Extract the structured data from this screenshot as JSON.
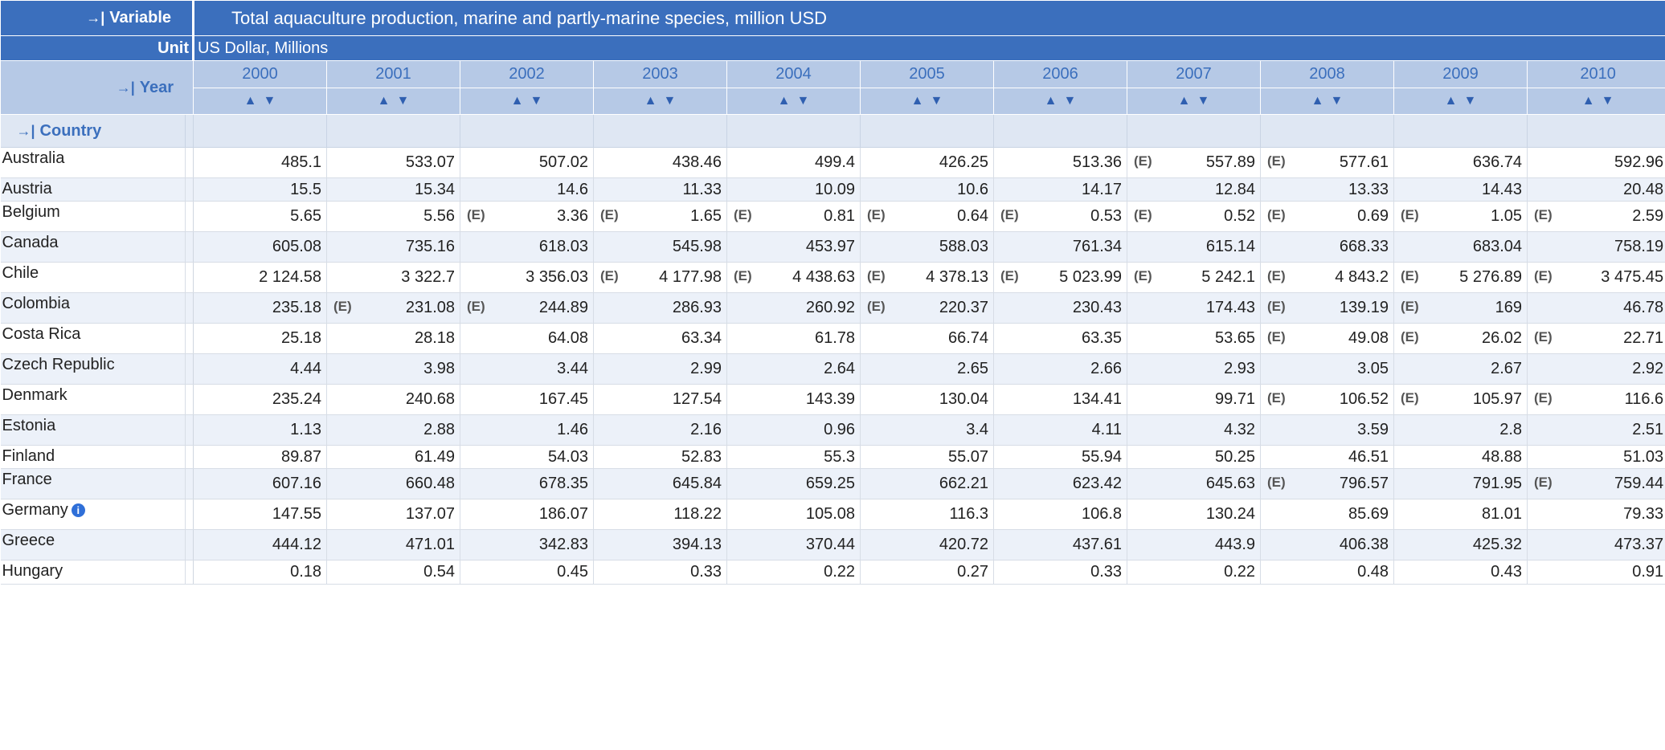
{
  "header": {
    "variable_label": "Variable",
    "variable_value": "Total aquaculture production, marine and partly-marine species, million USD",
    "unit_label": "Unit",
    "unit_value": "US Dollar, Millions",
    "year_label": "Year",
    "country_label": "Country",
    "expand_icon": "→|",
    "sort_up": "▲",
    "sort_down": "▼"
  },
  "years": [
    "2000",
    "2001",
    "2002",
    "2003",
    "2004",
    "2005",
    "2006",
    "2007",
    "2008",
    "2009",
    "2010"
  ],
  "flag_text": "(E)",
  "info_icon": "i",
  "rows": [
    {
      "country": "Australia",
      "info": false,
      "cells": [
        {
          "v": "485.1"
        },
        {
          "v": "533.07"
        },
        {
          "v": "507.02"
        },
        {
          "v": "438.46"
        },
        {
          "v": "499.4"
        },
        {
          "v": "426.25"
        },
        {
          "v": "513.36"
        },
        {
          "v": "557.89",
          "e": true
        },
        {
          "v": "577.61",
          "e": true
        },
        {
          "v": "636.74"
        },
        {
          "v": "592.96"
        }
      ]
    },
    {
      "country": "Austria",
      "info": false,
      "cells": [
        {
          "v": "15.5"
        },
        {
          "v": "15.34"
        },
        {
          "v": "14.6"
        },
        {
          "v": "11.33"
        },
        {
          "v": "10.09"
        },
        {
          "v": "10.6"
        },
        {
          "v": "14.17"
        },
        {
          "v": "12.84"
        },
        {
          "v": "13.33"
        },
        {
          "v": "14.43"
        },
        {
          "v": "20.48"
        }
      ]
    },
    {
      "country": "Belgium",
      "info": false,
      "cells": [
        {
          "v": "5.65"
        },
        {
          "v": "5.56"
        },
        {
          "v": "3.36",
          "e": true
        },
        {
          "v": "1.65",
          "e": true
        },
        {
          "v": "0.81",
          "e": true
        },
        {
          "v": "0.64",
          "e": true
        },
        {
          "v": "0.53",
          "e": true
        },
        {
          "v": "0.52",
          "e": true
        },
        {
          "v": "0.69",
          "e": true
        },
        {
          "v": "1.05",
          "e": true
        },
        {
          "v": "2.59",
          "e": true
        }
      ]
    },
    {
      "country": "Canada",
      "info": false,
      "cells": [
        {
          "v": "605.08"
        },
        {
          "v": "735.16"
        },
        {
          "v": "618.03"
        },
        {
          "v": "545.98"
        },
        {
          "v": "453.97"
        },
        {
          "v": "588.03"
        },
        {
          "v": "761.34"
        },
        {
          "v": "615.14"
        },
        {
          "v": "668.33"
        },
        {
          "v": "683.04"
        },
        {
          "v": "758.19"
        }
      ]
    },
    {
      "country": "Chile",
      "info": false,
      "cells": [
        {
          "v": "2 124.58"
        },
        {
          "v": "3 322.7"
        },
        {
          "v": "3 356.03"
        },
        {
          "v": "4 177.98",
          "e": true
        },
        {
          "v": "4 438.63",
          "e": true
        },
        {
          "v": "4 378.13",
          "e": true
        },
        {
          "v": "5 023.99",
          "e": true
        },
        {
          "v": "5 242.1",
          "e": true
        },
        {
          "v": "4 843.2",
          "e": true
        },
        {
          "v": "5 276.89",
          "e": true
        },
        {
          "v": "3 475.45",
          "e": true
        }
      ]
    },
    {
      "country": "Colombia",
      "info": false,
      "cells": [
        {
          "v": "235.18"
        },
        {
          "v": "231.08",
          "e": true
        },
        {
          "v": "244.89",
          "e": true
        },
        {
          "v": "286.93"
        },
        {
          "v": "260.92"
        },
        {
          "v": "220.37",
          "e": true
        },
        {
          "v": "230.43"
        },
        {
          "v": "174.43"
        },
        {
          "v": "139.19",
          "e": true
        },
        {
          "v": "169",
          "e": true
        },
        {
          "v": "46.78"
        }
      ]
    },
    {
      "country": "Costa Rica",
      "info": false,
      "cells": [
        {
          "v": "25.18"
        },
        {
          "v": "28.18"
        },
        {
          "v": "64.08"
        },
        {
          "v": "63.34"
        },
        {
          "v": "61.78"
        },
        {
          "v": "66.74"
        },
        {
          "v": "63.35"
        },
        {
          "v": "53.65"
        },
        {
          "v": "49.08",
          "e": true
        },
        {
          "v": "26.02",
          "e": true
        },
        {
          "v": "22.71",
          "e": true
        }
      ]
    },
    {
      "country": "Czech Republic",
      "info": false,
      "cells": [
        {
          "v": "4.44"
        },
        {
          "v": "3.98"
        },
        {
          "v": "3.44"
        },
        {
          "v": "2.99"
        },
        {
          "v": "2.64"
        },
        {
          "v": "2.65"
        },
        {
          "v": "2.66"
        },
        {
          "v": "2.93"
        },
        {
          "v": "3.05"
        },
        {
          "v": "2.67"
        },
        {
          "v": "2.92"
        }
      ]
    },
    {
      "country": "Denmark",
      "info": false,
      "cells": [
        {
          "v": "235.24"
        },
        {
          "v": "240.68"
        },
        {
          "v": "167.45"
        },
        {
          "v": "127.54"
        },
        {
          "v": "143.39"
        },
        {
          "v": "130.04"
        },
        {
          "v": "134.41"
        },
        {
          "v": "99.71"
        },
        {
          "v": "106.52",
          "e": true
        },
        {
          "v": "105.97",
          "e": true
        },
        {
          "v": "116.6",
          "e": true
        }
      ]
    },
    {
      "country": "Estonia",
      "info": false,
      "cells": [
        {
          "v": "1.13"
        },
        {
          "v": "2.88"
        },
        {
          "v": "1.46"
        },
        {
          "v": "2.16"
        },
        {
          "v": "0.96"
        },
        {
          "v": "3.4"
        },
        {
          "v": "4.11"
        },
        {
          "v": "4.32"
        },
        {
          "v": "3.59"
        },
        {
          "v": "2.8"
        },
        {
          "v": "2.51"
        }
      ]
    },
    {
      "country": "Finland",
      "info": false,
      "cells": [
        {
          "v": "89.87"
        },
        {
          "v": "61.49"
        },
        {
          "v": "54.03"
        },
        {
          "v": "52.83"
        },
        {
          "v": "55.3"
        },
        {
          "v": "55.07"
        },
        {
          "v": "55.94"
        },
        {
          "v": "50.25"
        },
        {
          "v": "46.51"
        },
        {
          "v": "48.88"
        },
        {
          "v": "51.03"
        }
      ]
    },
    {
      "country": "France",
      "info": false,
      "cells": [
        {
          "v": "607.16"
        },
        {
          "v": "660.48"
        },
        {
          "v": "678.35"
        },
        {
          "v": "645.84"
        },
        {
          "v": "659.25"
        },
        {
          "v": "662.21"
        },
        {
          "v": "623.42"
        },
        {
          "v": "645.63"
        },
        {
          "v": "796.57",
          "e": true
        },
        {
          "v": "791.95"
        },
        {
          "v": "759.44",
          "e": true
        }
      ]
    },
    {
      "country": "Germany",
      "info": true,
      "cells": [
        {
          "v": "147.55"
        },
        {
          "v": "137.07"
        },
        {
          "v": "186.07"
        },
        {
          "v": "118.22"
        },
        {
          "v": "105.08"
        },
        {
          "v": "116.3"
        },
        {
          "v": "106.8"
        },
        {
          "v": "130.24"
        },
        {
          "v": "85.69"
        },
        {
          "v": "81.01"
        },
        {
          "v": "79.33"
        }
      ]
    },
    {
      "country": "Greece",
      "info": false,
      "cells": [
        {
          "v": "444.12"
        },
        {
          "v": "471.01"
        },
        {
          "v": "342.83"
        },
        {
          "v": "394.13"
        },
        {
          "v": "370.44"
        },
        {
          "v": "420.72"
        },
        {
          "v": "437.61"
        },
        {
          "v": "443.9"
        },
        {
          "v": "406.38"
        },
        {
          "v": "425.32"
        },
        {
          "v": "473.37"
        }
      ]
    },
    {
      "country": "Hungary",
      "info": false,
      "cells": [
        {
          "v": "0.18"
        },
        {
          "v": "0.54"
        },
        {
          "v": "0.45"
        },
        {
          "v": "0.33"
        },
        {
          "v": "0.22"
        },
        {
          "v": "0.27"
        },
        {
          "v": "0.33"
        },
        {
          "v": "0.22"
        },
        {
          "v": "0.48"
        },
        {
          "v": "0.43"
        },
        {
          "v": "0.91"
        }
      ]
    }
  ]
}
